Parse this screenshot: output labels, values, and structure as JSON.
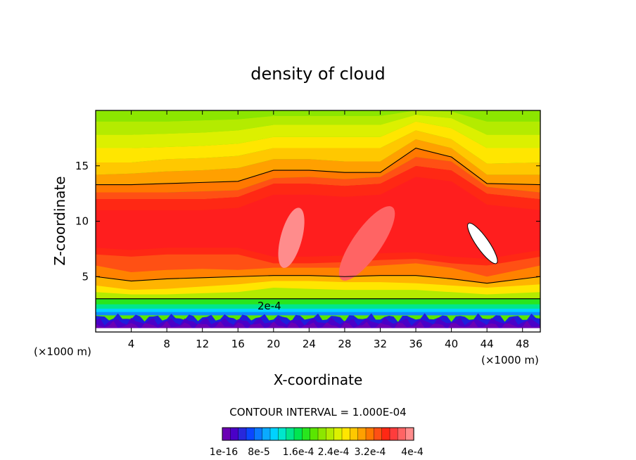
{
  "chart_data": {
    "type": "heatmap",
    "title": "density of cloud",
    "xlabel": "X-coordinate",
    "ylabel": "Z-coordinate",
    "x_unit": "(×1000 m)",
    "xlim": [
      0,
      50
    ],
    "ylim": [
      0,
      20
    ],
    "x_ticks": [
      4,
      8,
      12,
      16,
      20,
      24,
      28,
      32,
      36,
      40,
      44,
      48
    ],
    "x_tick_labels": [
      "4",
      "8",
      "12",
      "16",
      "20",
      "24",
      "28",
      "32",
      "36",
      "40",
      "44",
      "48"
    ],
    "y_ticks": [
      5,
      10,
      15
    ],
    "y_tick_labels": [
      "5",
      "10",
      "15"
    ],
    "contour_label": "2e-4",
    "contour_interval_text": "CONTOUR INTERVAL = 1.000E-04",
    "colorbar_labels": [
      "1e-16",
      "8e-5",
      "1.6e-4",
      "2.4e-4",
      "3.2e-4",
      "4e-4"
    ],
    "colorbar_colors": [
      "#6b00b4",
      "#4a00c8",
      "#2828dc",
      "#0a46ff",
      "#0a78ff",
      "#0aaaff",
      "#00d2ff",
      "#00e6cc",
      "#00e68c",
      "#00e650",
      "#28e61e",
      "#5ae600",
      "#8ce600",
      "#b4eb00",
      "#dcf000",
      "#ffe600",
      "#ffc800",
      "#ffa000",
      "#ff7800",
      "#ff5014",
      "#ff2814",
      "#ff3c3c",
      "#ff6464",
      "#ff8c8c"
    ],
    "layers": [
      {
        "level": 0.00012,
        "z": [
          1.5,
          1.5,
          1.5,
          1.5,
          1.5,
          1.5,
          1.5,
          1.5,
          1.5,
          1.5,
          1.5,
          1.5,
          1.5
        ],
        "color": "#0a8cff"
      },
      {
        "level": 0.00014,
        "z": [
          1.8,
          1.8,
          1.8,
          1.8,
          1.8,
          1.8,
          1.8,
          1.8,
          1.8,
          1.8,
          1.8,
          1.8,
          1.8
        ],
        "color": "#00d2ff"
      },
      {
        "level": 0.00016,
        "z": [
          2.1,
          2.1,
          2.1,
          2.1,
          2.1,
          2.1,
          2.1,
          2.1,
          2.1,
          2.1,
          2.1,
          2.1,
          2.1
        ],
        "color": "#00e68c"
      },
      {
        "level": 0.00018,
        "z": [
          2.5,
          2.5,
          2.5,
          2.5,
          2.5,
          2.5,
          2.5,
          2.5,
          2.5,
          2.5,
          2.5,
          2.5,
          2.5
        ],
        "color": "#28e61e"
      },
      {
        "level": 0.0002,
        "z": [
          3.0,
          3.0,
          3.0,
          3.0,
          3.0,
          3.0,
          3.0,
          3.0,
          3.0,
          3.0,
          3.0,
          3.0,
          3.0
        ],
        "color": "#b4eb00"
      },
      {
        "level": 0.00022,
        "z": [
          3.6,
          3.4,
          3.4,
          3.5,
          3.6,
          4.0,
          3.9,
          3.8,
          3.8,
          3.8,
          3.6,
          3.4,
          3.6
        ],
        "color": "#ffe600"
      },
      {
        "level": 0.00024,
        "z": [
          4.2,
          3.8,
          3.9,
          4.1,
          4.3,
          4.6,
          4.6,
          4.5,
          4.5,
          4.4,
          4.2,
          4.0,
          4.3
        ],
        "color": "#ffb400"
      },
      {
        "level": 0.00026,
        "z": [
          5.0,
          4.6,
          4.8,
          4.9,
          5.0,
          5.1,
          5.1,
          5.0,
          5.1,
          5.1,
          4.8,
          4.4,
          5.0
        ],
        "color": "#ff8200"
      },
      {
        "level": 0.00028,
        "z": [
          6.0,
          5.4,
          5.6,
          5.7,
          5.6,
          5.8,
          5.8,
          5.8,
          6.0,
          6.2,
          5.8,
          5.0,
          6.0
        ],
        "color": "#ff5014"
      },
      {
        "level": 0.0003,
        "z": [
          7.0,
          6.8,
          7.0,
          7.0,
          7.0,
          6.2,
          6.2,
          6.3,
          6.5,
          6.6,
          6.2,
          6.0,
          6.8
        ],
        "color": "#ff2814"
      }
    ],
    "upper_layers": [
      {
        "level": 0.00028,
        "z": [
          12.0,
          12.0,
          12.0,
          12.0,
          12.2,
          13.4,
          13.4,
          13.2,
          13.4,
          15.0,
          14.6,
          12.5,
          12.0
        ],
        "color": "#ff5014"
      },
      {
        "level": 0.00026,
        "z": [
          12.6,
          12.6,
          12.6,
          12.7,
          12.8,
          13.9,
          14.0,
          13.8,
          14.0,
          15.8,
          15.4,
          13.1,
          12.6
        ],
        "color": "#ff7800"
      },
      {
        "level": 0.00024,
        "z": [
          13.3,
          13.3,
          13.4,
          13.5,
          13.6,
          14.6,
          14.6,
          14.4,
          14.4,
          16.6,
          15.8,
          13.4,
          13.3
        ],
        "color": "#ffa000"
      },
      {
        "level": 0.00022,
        "z": [
          14.2,
          14.3,
          14.5,
          14.6,
          14.8,
          15.6,
          15.6,
          15.4,
          15.4,
          17.4,
          16.6,
          14.2,
          14.2
        ],
        "color": "#ffc800"
      },
      {
        "level": 0.0002,
        "z": [
          15.3,
          15.3,
          15.6,
          15.7,
          15.9,
          16.6,
          16.6,
          16.6,
          16.6,
          18.2,
          17.4,
          15.2,
          15.3
        ],
        "color": "#ffe600"
      },
      {
        "level": 0.00018,
        "z": [
          16.6,
          16.6,
          16.7,
          16.8,
          17.0,
          17.6,
          17.6,
          17.6,
          17.6,
          19.0,
          18.4,
          16.6,
          16.6
        ],
        "color": "#dcf000"
      },
      {
        "level": 0.00016,
        "z": [
          17.8,
          17.8,
          17.9,
          18.0,
          18.2,
          18.7,
          18.7,
          18.7,
          18.7,
          19.6,
          19.3,
          17.8,
          17.8
        ],
        "color": "#b4eb00"
      },
      {
        "level": 0.00014,
        "z": [
          19.0,
          19.0,
          19.0,
          19.1,
          19.2,
          19.5,
          19.5,
          19.5,
          19.5,
          20.0,
          19.9,
          19.0,
          19.0
        ],
        "color": "#8ce600"
      }
    ],
    "layer_x": [
      0,
      4,
      8,
      12,
      16,
      20,
      24,
      28,
      32,
      36,
      40,
      44,
      50
    ],
    "maxima": [
      {
        "x": 22.0,
        "z": 8.5,
        "rx": 1.2,
        "rz": 2.8,
        "rotate": 15,
        "color": "#ff8c8c"
      },
      {
        "x": 30.5,
        "z": 8.0,
        "rx": 1.6,
        "rz": 4.0,
        "rotate": 35,
        "color": "#ff6464"
      },
      {
        "x": 43.5,
        "z": 8.0,
        "rx": 0.7,
        "rz": 2.2,
        "rotate": -35,
        "color": "#ffffff"
      }
    ]
  }
}
